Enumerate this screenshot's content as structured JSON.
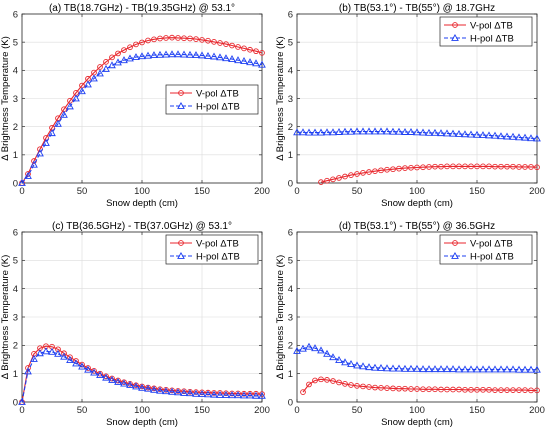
{
  "chart_data": [
    {
      "type": "line",
      "title": "(a) TB(18.7GHz) - TB(19.35GHz) @ 53.1°",
      "xlabel": "Snow depth (cm)",
      "ylabel": "Δ Brightness Temperature (K)",
      "xlim": [
        0,
        200
      ],
      "ylim": [
        0,
        6
      ],
      "xticks": [
        "0",
        "50",
        "100",
        "150",
        "200"
      ],
      "yticks": [
        "0",
        "1",
        "2",
        "3",
        "4",
        "5",
        "6"
      ],
      "grid": true,
      "legend": "center-right",
      "series": [
        {
          "name": "V-pol ΔTB",
          "color": "#e8262c",
          "marker": "circle",
          "line": "solid",
          "x": [
            0,
            5,
            10,
            15,
            20,
            25,
            30,
            35,
            40,
            45,
            50,
            55,
            60,
            65,
            70,
            75,
            80,
            85,
            90,
            95,
            100,
            105,
            110,
            115,
            120,
            125,
            130,
            135,
            140,
            145,
            150,
            155,
            160,
            165,
            170,
            175,
            180,
            185,
            190,
            195,
            200
          ],
          "y": [
            0,
            0.32,
            0.78,
            1.2,
            1.6,
            1.96,
            2.3,
            2.62,
            2.92,
            3.2,
            3.46,
            3.7,
            3.92,
            4.12,
            4.3,
            4.46,
            4.6,
            4.72,
            4.82,
            4.92,
            4.99,
            5.06,
            5.1,
            5.13,
            5.15,
            5.16,
            5.15,
            5.14,
            5.13,
            5.11,
            5.08,
            5.05,
            5.01,
            4.97,
            4.93,
            4.88,
            4.83,
            4.78,
            4.73,
            4.68,
            4.62
          ]
        },
        {
          "name": "H-pol ΔTB",
          "color": "#1d3ff2",
          "marker": "triangle",
          "line": "dashed",
          "x": [
            0,
            5,
            10,
            15,
            20,
            25,
            30,
            35,
            40,
            45,
            50,
            55,
            60,
            65,
            70,
            75,
            80,
            85,
            90,
            95,
            100,
            105,
            110,
            115,
            120,
            125,
            130,
            135,
            140,
            145,
            150,
            155,
            160,
            165,
            170,
            175,
            180,
            185,
            190,
            195,
            200
          ],
          "y": [
            0,
            0.25,
            0.65,
            1.05,
            1.42,
            1.77,
            2.1,
            2.42,
            2.72,
            3.0,
            3.26,
            3.5,
            3.71,
            3.89,
            4.05,
            4.18,
            4.28,
            4.36,
            4.42,
            4.47,
            4.5,
            4.52,
            4.54,
            4.55,
            4.56,
            4.57,
            4.57,
            4.56,
            4.55,
            4.54,
            4.53,
            4.51,
            4.49,
            4.46,
            4.43,
            4.4,
            4.36,
            4.33,
            4.29,
            4.25,
            4.2
          ]
        }
      ]
    },
    {
      "type": "line",
      "title": "(b) TB(53.1°) - TB(55°) @ 18.7GHz",
      "xlabel": "Snow depth (cm)",
      "ylabel": "Δ Brightness Temperature (K)",
      "xlim": [
        0,
        200
      ],
      "ylim": [
        0,
        6
      ],
      "xticks": [
        "0",
        "50",
        "100",
        "150",
        "200"
      ],
      "yticks": [
        "0",
        "1",
        "2",
        "3",
        "4",
        "5",
        "6"
      ],
      "grid": true,
      "legend": "top-right",
      "series": [
        {
          "name": "V-pol ΔTB",
          "color": "#e8262c",
          "marker": "circle",
          "line": "solid",
          "x": [
            20,
            25,
            30,
            35,
            40,
            45,
            50,
            55,
            60,
            65,
            70,
            75,
            80,
            85,
            90,
            95,
            100,
            105,
            110,
            115,
            120,
            125,
            130,
            135,
            140,
            145,
            150,
            155,
            160,
            165,
            170,
            175,
            180,
            185,
            190,
            195,
            200
          ],
          "y": [
            0.03,
            0.08,
            0.13,
            0.18,
            0.23,
            0.28,
            0.32,
            0.36,
            0.39,
            0.42,
            0.45,
            0.47,
            0.49,
            0.51,
            0.53,
            0.54,
            0.55,
            0.56,
            0.57,
            0.58,
            0.58,
            0.59,
            0.59,
            0.59,
            0.59,
            0.59,
            0.59,
            0.59,
            0.59,
            0.58,
            0.58,
            0.58,
            0.58,
            0.57,
            0.57,
            0.57,
            0.56
          ]
        },
        {
          "name": "H-pol ΔTB",
          "color": "#1d3ff2",
          "marker": "triangle",
          "line": "dashed",
          "x": [
            0,
            5,
            10,
            15,
            20,
            25,
            30,
            35,
            40,
            45,
            50,
            55,
            60,
            65,
            70,
            75,
            80,
            85,
            90,
            95,
            100,
            105,
            110,
            115,
            120,
            125,
            130,
            135,
            140,
            145,
            150,
            155,
            160,
            165,
            170,
            175,
            180,
            185,
            190,
            195,
            200
          ],
          "y": [
            1.8,
            1.8,
            1.79,
            1.79,
            1.79,
            1.8,
            1.8,
            1.81,
            1.82,
            1.82,
            1.83,
            1.83,
            1.83,
            1.83,
            1.83,
            1.83,
            1.82,
            1.82,
            1.81,
            1.81,
            1.8,
            1.79,
            1.78,
            1.78,
            1.77,
            1.76,
            1.75,
            1.74,
            1.73,
            1.72,
            1.71,
            1.7,
            1.69,
            1.68,
            1.66,
            1.65,
            1.64,
            1.62,
            1.61,
            1.59,
            1.58
          ]
        }
      ]
    },
    {
      "type": "line",
      "title": "(c) TB(36.5GHz) - TB(37.0GHz) @ 53.1°",
      "xlabel": "Snow depth (cm)",
      "ylabel": "Δ Brightness Temperature (K)",
      "xlim": [
        0,
        200
      ],
      "ylim": [
        0,
        6
      ],
      "xticks": [
        "0",
        "50",
        "100",
        "150",
        "200"
      ],
      "yticks": [
        "0",
        "1",
        "2",
        "3",
        "4",
        "5",
        "6"
      ],
      "grid": true,
      "legend": "top-right",
      "series": [
        {
          "name": "V-pol ΔTB",
          "color": "#e8262c",
          "marker": "circle",
          "line": "solid",
          "x": [
            0,
            5,
            10,
            15,
            20,
            25,
            30,
            35,
            40,
            45,
            50,
            55,
            60,
            65,
            70,
            75,
            80,
            85,
            90,
            95,
            100,
            105,
            110,
            115,
            120,
            125,
            130,
            135,
            140,
            145,
            150,
            155,
            160,
            165,
            170,
            175,
            180,
            185,
            190,
            195,
            200
          ],
          "y": [
            0,
            1.2,
            1.7,
            1.9,
            1.97,
            1.95,
            1.86,
            1.72,
            1.58,
            1.45,
            1.32,
            1.2,
            1.1,
            1.0,
            0.91,
            0.83,
            0.76,
            0.7,
            0.64,
            0.59,
            0.55,
            0.51,
            0.48,
            0.45,
            0.43,
            0.41,
            0.39,
            0.38,
            0.36,
            0.35,
            0.34,
            0.33,
            0.32,
            0.32,
            0.31,
            0.3,
            0.3,
            0.29,
            0.29,
            0.29,
            0.28
          ]
        },
        {
          "name": "H-pol ΔTB",
          "color": "#1d3ff2",
          "marker": "triangle",
          "line": "dashed",
          "x": [
            0,
            5,
            10,
            15,
            20,
            25,
            30,
            35,
            40,
            45,
            50,
            55,
            60,
            65,
            70,
            75,
            80,
            85,
            90,
            95,
            100,
            105,
            110,
            115,
            120,
            125,
            130,
            135,
            140,
            145,
            150,
            155,
            160,
            165,
            170,
            175,
            180,
            185,
            190,
            195,
            200
          ],
          "y": [
            0,
            1.08,
            1.52,
            1.72,
            1.79,
            1.77,
            1.7,
            1.6,
            1.48,
            1.36,
            1.25,
            1.14,
            1.04,
            0.95,
            0.86,
            0.78,
            0.71,
            0.65,
            0.6,
            0.55,
            0.5,
            0.47,
            0.43,
            0.4,
            0.38,
            0.36,
            0.34,
            0.32,
            0.31,
            0.29,
            0.28,
            0.27,
            0.26,
            0.25,
            0.25,
            0.24,
            0.24,
            0.23,
            0.23,
            0.22,
            0.22
          ]
        }
      ]
    },
    {
      "type": "line",
      "title": "(d) TB(53.1°) - TB(55°) @ 36.5GHz",
      "xlabel": "Snow depth (cm)",
      "ylabel": "Δ Brightness Temperature (K)",
      "xlim": [
        0,
        200
      ],
      "ylim": [
        0,
        6
      ],
      "xticks": [
        "0",
        "50",
        "100",
        "150",
        "200"
      ],
      "yticks": [
        "0",
        "1",
        "2",
        "3",
        "4",
        "5",
        "6"
      ],
      "grid": true,
      "legend": "top-right",
      "series": [
        {
          "name": "V-pol ΔTB",
          "color": "#e8262c",
          "marker": "circle",
          "line": "solid",
          "x": [
            5,
            10,
            15,
            20,
            25,
            30,
            35,
            40,
            45,
            50,
            55,
            60,
            65,
            70,
            75,
            80,
            85,
            90,
            95,
            100,
            105,
            110,
            115,
            120,
            125,
            130,
            135,
            140,
            145,
            150,
            155,
            160,
            165,
            170,
            175,
            180,
            185,
            190,
            195,
            200
          ],
          "y": [
            0.35,
            0.62,
            0.76,
            0.8,
            0.78,
            0.74,
            0.69,
            0.64,
            0.6,
            0.57,
            0.55,
            0.53,
            0.51,
            0.5,
            0.49,
            0.48,
            0.47,
            0.47,
            0.46,
            0.46,
            0.45,
            0.45,
            0.45,
            0.44,
            0.44,
            0.44,
            0.44,
            0.43,
            0.43,
            0.43,
            0.43,
            0.43,
            0.42,
            0.42,
            0.42,
            0.42,
            0.42,
            0.42,
            0.41,
            0.41
          ]
        },
        {
          "name": "H-pol ΔTB",
          "color": "#1d3ff2",
          "marker": "triangle",
          "line": "dashed",
          "x": [
            0,
            5,
            10,
            15,
            20,
            25,
            30,
            35,
            40,
            45,
            50,
            55,
            60,
            65,
            70,
            75,
            80,
            85,
            90,
            95,
            100,
            105,
            110,
            115,
            120,
            125,
            130,
            135,
            140,
            145,
            150,
            155,
            160,
            165,
            170,
            175,
            180,
            185,
            190,
            195,
            200
          ],
          "y": [
            1.8,
            1.88,
            1.95,
            1.9,
            1.82,
            1.7,
            1.58,
            1.48,
            1.4,
            1.34,
            1.29,
            1.26,
            1.23,
            1.21,
            1.2,
            1.19,
            1.18,
            1.18,
            1.17,
            1.17,
            1.17,
            1.16,
            1.16,
            1.16,
            1.16,
            1.16,
            1.16,
            1.15,
            1.15,
            1.15,
            1.15,
            1.15,
            1.15,
            1.15,
            1.15,
            1.15,
            1.15,
            1.14,
            1.14,
            1.14,
            1.14
          ]
        }
      ]
    }
  ]
}
